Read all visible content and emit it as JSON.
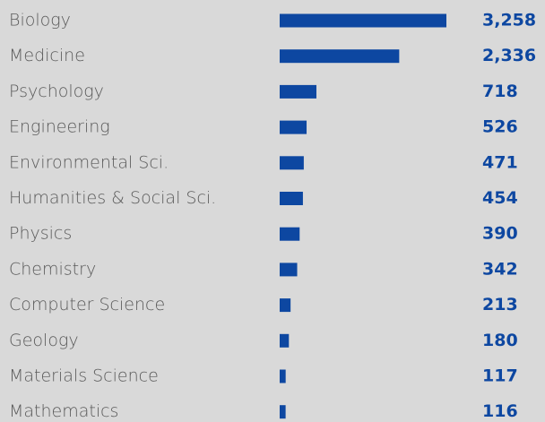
{
  "chart_data": {
    "type": "bar",
    "orientation": "horizontal",
    "categories": [
      "Biology",
      "Medicine",
      "Psychology",
      "Engineering",
      "Environmental Sci.",
      "Humanities & Social Sci.",
      "Physics",
      "Chemistry",
      "Computer Science",
      "Geology",
      "Materials Science",
      "Mathematics"
    ],
    "values": [
      3258,
      2336,
      718,
      526,
      471,
      454,
      390,
      342,
      213,
      180,
      117,
      116
    ],
    "value_labels": [
      "3,258",
      "2,336",
      "718",
      "526",
      "471",
      "454",
      "390",
      "342",
      "213",
      "180",
      "117",
      "116"
    ],
    "color": "#0d47a1"
  }
}
